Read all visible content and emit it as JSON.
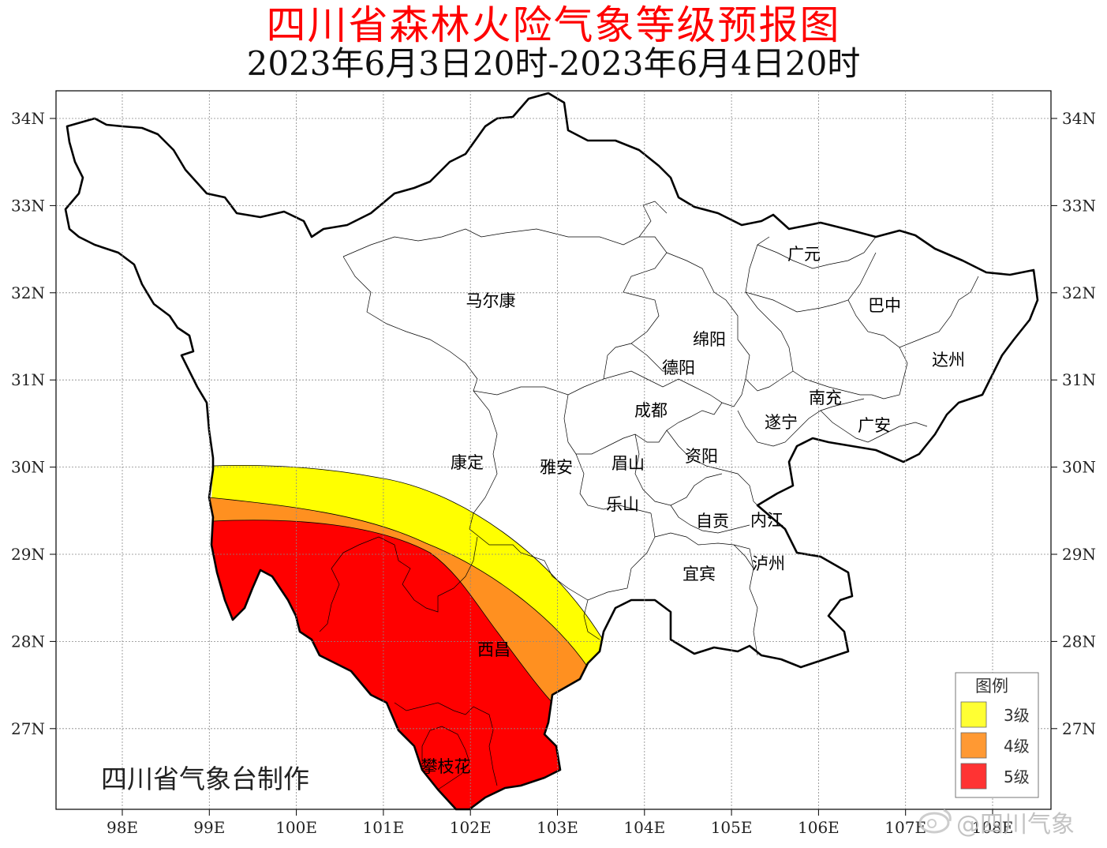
{
  "title": "四川省森林火险气象等级预报图",
  "subtitle": "2023年6月3日20时-2023年6月4日20时",
  "axes": {
    "lon_labels": [
      "98E",
      "99E",
      "100E",
      "101E",
      "102E",
      "103E",
      "104E",
      "105E",
      "106E",
      "107E",
      "108E"
    ],
    "lat_labels": [
      "34N",
      "33N",
      "32N",
      "31N",
      "30N",
      "29N",
      "28N",
      "27N"
    ]
  },
  "cities": [
    {
      "name": "广元"
    },
    {
      "name": "巴中"
    },
    {
      "name": "马尔康"
    },
    {
      "name": "绵阳"
    },
    {
      "name": "达州"
    },
    {
      "name": "德阳"
    },
    {
      "name": "南充"
    },
    {
      "name": "成都"
    },
    {
      "name": "遂宁"
    },
    {
      "name": "广安"
    },
    {
      "name": "康定"
    },
    {
      "name": "雅安"
    },
    {
      "name": "眉山"
    },
    {
      "name": "资阳"
    },
    {
      "name": "乐山"
    },
    {
      "name": "自贡"
    },
    {
      "name": "内江"
    },
    {
      "name": "泸州"
    },
    {
      "name": "宜宾"
    },
    {
      "name": "西昌"
    },
    {
      "name": "攀枝花"
    }
  ],
  "legend": {
    "title": "图例",
    "items": [
      {
        "label": "3级",
        "color": "#ffff33"
      },
      {
        "label": "4级",
        "color": "#ff9933"
      },
      {
        "label": "5级",
        "color": "#ff3333"
      }
    ]
  },
  "zone_colors": {
    "level3": "#ffff00",
    "level4": "#ff9020",
    "level5": "#ff0000"
  },
  "maker": "四川省气象台制作",
  "watermark": "@四川气象"
}
